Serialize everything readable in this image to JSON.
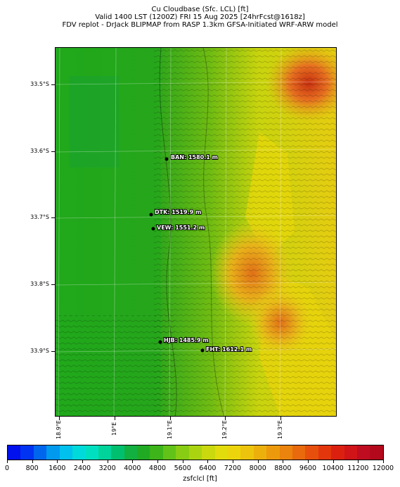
{
  "header": {
    "line1": "Cu Cloudbase (Sfc. LCL) [ft]",
    "line2": "Valid 1400 LST (1200Z) FRI 15 Aug 2025 [24hrFcst@1618z]",
    "line3": "FDV replot - DrJack BLIPMAP from RASP 1.3km GFSA-Initiated WRF-ARW model"
  },
  "lat_labels": [
    "33.5°S",
    "33.6°S",
    "33.7°S",
    "33.8°S",
    "33.9°S"
  ],
  "lon_labels": [
    "18.9°E",
    "19°E",
    "19.1°E",
    "19.2°E",
    "19.3°E"
  ],
  "sites": [
    {
      "label": "BAN: 1580.1 m"
    },
    {
      "label": "DTK: 1519.9 m"
    },
    {
      "label": "VEW: 1551.2 m"
    },
    {
      "label": "HJB: 1485.9 m"
    },
    {
      "label": "FHT: 1612.1 m"
    }
  ],
  "colorbar": {
    "title": "zsfclcl [ft]",
    "ticks": [
      "0",
      "800",
      "1600",
      "2400",
      "3200",
      "4000",
      "4800",
      "5600",
      "6400",
      "7200",
      "8000",
      "8800",
      "9600",
      "10400",
      "11200",
      "12000"
    ],
    "colors": [
      "#0011ee",
      "#0033f2",
      "#0066ee",
      "#0099ee",
      "#00c0ee",
      "#00dada",
      "#00e0c0",
      "#00d49a",
      "#00c070",
      "#12b040",
      "#20aa24",
      "#3cb41a",
      "#62c218",
      "#88cc14",
      "#aad410",
      "#cad80e",
      "#e2dc0c",
      "#ecd40c",
      "#ecc40c",
      "#ecb00c",
      "#ec9a0c",
      "#ea840c",
      "#e86a0c",
      "#e6500c",
      "#e4360c",
      "#dc2010",
      "#d01418",
      "#c00c20",
      "#b4081c"
    ]
  },
  "legend": {
    "site_marker_color": "#000000",
    "accent_low": "#2aa51c",
    "accent_mid": "#e8d80a",
    "accent_high": "#c02010"
  }
}
